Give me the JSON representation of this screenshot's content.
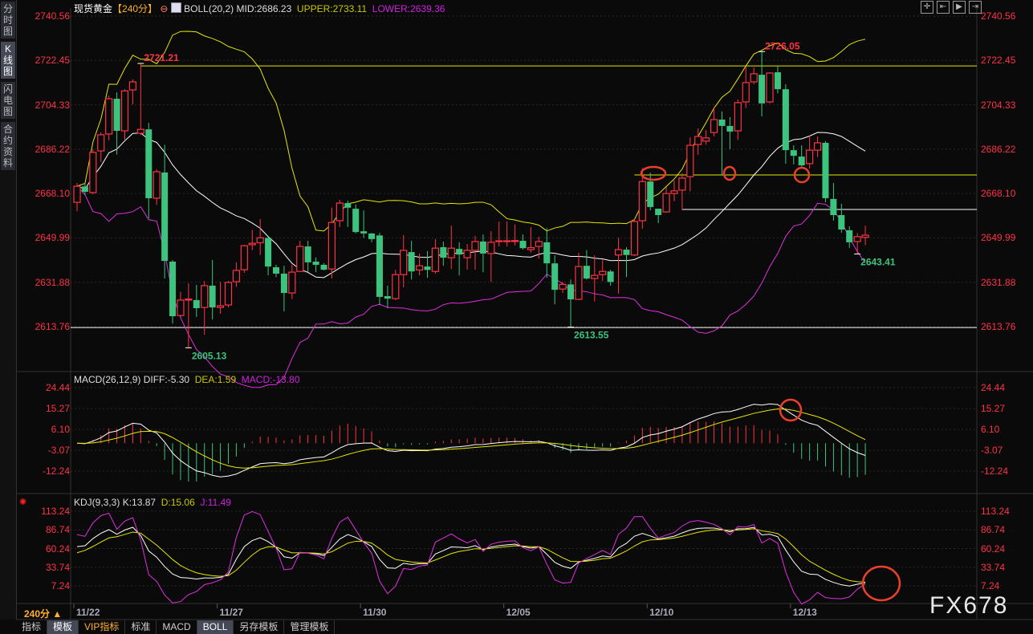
{
  "sidebar": {
    "tabs": [
      {
        "label": "分时图"
      },
      {
        "label": "K线图",
        "selected": true
      },
      {
        "label": "闪电图"
      },
      {
        "label": "合约资料"
      }
    ]
  },
  "header": {
    "title": "现货黄金",
    "period": "【240分】",
    "boll": "BOLL(20,2)",
    "mid": "MID:2686.23",
    "upper": "UPPER:2733.11",
    "lower": "LOWER:2639.36",
    "macd_name": "MACD(26,12,9)",
    "diff": "DIFF:-5.30",
    "dea": "DEA:1.59",
    "macd": "MACD:-13.80",
    "kdj_name": "KDJ(9,3,3)",
    "k": "K:13.87",
    "d": "D:15.06",
    "j": "J:11.49"
  },
  "toolbar_icons": [
    "crosshair-icon",
    "zoom-left-icon",
    "play-icon",
    "move-right-icon"
  ],
  "colors": {
    "up": "#ff3344",
    "down": "#3cc47e",
    "mid": "#ffffff",
    "upper": "#e6e600",
    "lower": "#e030e0",
    "dea": "#e6e600",
    "diff": "#ffffff",
    "j": "#e030e0",
    "axis": "#ff3344",
    "annotation": "#e8402a"
  },
  "price_axis": [
    "2740.56",
    "2722.45",
    "2704.33",
    "2686.22",
    "2668.10",
    "2649.99",
    "2631.88",
    "2613.76"
  ],
  "macd_axis": [
    "24.44",
    "15.27",
    "6.10",
    "-3.07",
    "-12.24"
  ],
  "kdj_axis": [
    "113.24",
    "86.74",
    "60.24",
    "33.74",
    "7.24"
  ],
  "x_axis": [
    {
      "label": "11/22",
      "candle": 0
    },
    {
      "label": "11/27",
      "candle": 18
    },
    {
      "label": "11/30",
      "candle": 36
    },
    {
      "label": "12/05",
      "candle": 54
    },
    {
      "label": "12/10",
      "candle": 72
    },
    {
      "label": "12/13",
      "candle": 90
    }
  ],
  "period_label": "240分 ▲",
  "bottom_tabs": [
    {
      "label": "指标"
    },
    {
      "label": "模板",
      "selected": true
    },
    {
      "label": "VIP指标",
      "vip": true
    },
    {
      "label": "标准"
    },
    {
      "label": "MACD"
    },
    {
      "label": "BOLL",
      "selected": true
    },
    {
      "label": "另存模板"
    },
    {
      "label": "管理模板"
    }
  ],
  "watermark": "FX678",
  "peak_labels": [
    {
      "text": "2721.21",
      "candle": 8,
      "price": 2721.21,
      "type": "high"
    },
    {
      "text": "2605.13",
      "candle": 14,
      "price": 2605.13,
      "type": "low"
    },
    {
      "text": "2613.55",
      "candle": 62,
      "price": 2613.55,
      "type": "low"
    },
    {
      "text": "2726.05",
      "candle": 86,
      "price": 2726.05,
      "type": "high"
    },
    {
      "text": "2643.41",
      "candle": 98,
      "price": 2643.41,
      "type": "low"
    }
  ],
  "level_lines": [
    {
      "price": 2720.2,
      "color": "#e6e600",
      "from_candle": 8
    },
    {
      "price": 2675.7,
      "color": "#e6e600",
      "from_candle": 70
    },
    {
      "price": 2661.6,
      "color": "#ffffff",
      "from_candle": 76
    },
    {
      "price": 2613.4,
      "color": "#ffffff",
      "from_candle": -1
    }
  ],
  "chart_data": {
    "type": "candlestick",
    "indicators": {
      "boll": [
        20,
        2
      ],
      "macd": [
        26,
        12,
        9
      ],
      "kdj": [
        9,
        3,
        3
      ]
    },
    "price_range": [
      2613.76,
      2740.56
    ],
    "macd_range": [
      -12.24,
      24.44
    ],
    "kdj_range": [
      7.24,
      113.24
    ],
    "ohlc": [
      [
        2664.5,
        2672.4,
        2660.9,
        2671.1
      ],
      [
        2671,
        2672.7,
        2667.5,
        2668.8
      ],
      [
        2668.5,
        2686.2,
        2667.8,
        2684.9
      ],
      [
        2685.5,
        2693.1,
        2680.9,
        2692.1
      ],
      [
        2692.4,
        2708.1,
        2689.8,
        2706.8
      ],
      [
        2706.8,
        2709.4,
        2684,
        2693.7
      ],
      [
        2693.7,
        2710.7,
        2690,
        2710
      ],
      [
        2710.4,
        2714.7,
        2704.5,
        2713.7
      ],
      [
        2692.7,
        2721.21,
        2692,
        2694.3
      ],
      [
        2694.3,
        2697,
        2658,
        2666.2
      ],
      [
        2666.2,
        2678,
        2663.5,
        2677
      ],
      [
        2676.7,
        2688,
        2633.4,
        2640.6
      ],
      [
        2640.3,
        2641,
        2615,
        2618
      ],
      [
        2618.3,
        2628,
        2617.7,
        2624.6
      ],
      [
        2624.6,
        2631.4,
        2605.13,
        2625
      ],
      [
        2624.6,
        2630.8,
        2617.7,
        2621.3
      ],
      [
        2621.6,
        2632.4,
        2610.5,
        2630.5
      ],
      [
        2630.5,
        2641,
        2616.7,
        2621.6
      ],
      [
        2621.6,
        2632,
        2619,
        2622.3
      ],
      [
        2622.6,
        2632.4,
        2621.6,
        2631.8
      ],
      [
        2632.1,
        2640,
        2630,
        2636.7
      ],
      [
        2637,
        2647.2,
        2635.7,
        2646.8
      ],
      [
        2647.2,
        2653.3,
        2645,
        2647.8
      ],
      [
        2648,
        2657.7,
        2643,
        2650
      ],
      [
        2650,
        2650,
        2634.7,
        2638.3
      ],
      [
        2638,
        2639,
        2634,
        2635.4
      ],
      [
        2635.4,
        2638.6,
        2620,
        2627.5
      ],
      [
        2627.5,
        2639,
        2625,
        2636
      ],
      [
        2636.3,
        2648.8,
        2636.3,
        2646.5
      ],
      [
        2646.5,
        2648.8,
        2636,
        2640
      ],
      [
        2640.3,
        2642,
        2636,
        2639
      ],
      [
        2639,
        2639.7,
        2636.7,
        2637
      ],
      [
        2637.3,
        2662.4,
        2633.4,
        2656.3
      ],
      [
        2657,
        2665.5,
        2654.4,
        2664.2
      ],
      [
        2664.2,
        2665.2,
        2654.4,
        2662.3
      ],
      [
        2661.9,
        2663.6,
        2651.8,
        2652.4
      ],
      [
        2652.7,
        2661.2,
        2650,
        2651.8
      ],
      [
        2651.8,
        2652,
        2648.2,
        2649.5
      ],
      [
        2651,
        2652,
        2622.6,
        2625.9
      ],
      [
        2626.2,
        2630.5,
        2621.3,
        2625.2
      ],
      [
        2625.2,
        2637,
        2624.6,
        2635
      ],
      [
        2635,
        2651.1,
        2629.8,
        2644.9
      ],
      [
        2644.2,
        2648.8,
        2633,
        2636.3
      ],
      [
        2636.9,
        2643.6,
        2634.7,
        2638.6
      ],
      [
        2638.3,
        2644.6,
        2633.7,
        2636.9
      ],
      [
        2636.3,
        2649.5,
        2635.4,
        2645.8
      ],
      [
        2646.2,
        2648.5,
        2638.6,
        2641.9
      ],
      [
        2641.9,
        2655,
        2637.3,
        2645.8
      ],
      [
        2645.5,
        2648.2,
        2634.7,
        2643.2
      ],
      [
        2641.9,
        2647.5,
        2637,
        2644.9
      ],
      [
        2644.9,
        2650.8,
        2637,
        2648.5
      ],
      [
        2648.5,
        2651.4,
        2636,
        2643.6
      ],
      [
        2643.6,
        2652.7,
        2632,
        2648.2
      ],
      [
        2648.5,
        2656.7,
        2646.5,
        2648.8
      ],
      [
        2648.5,
        2656.7,
        2646.5,
        2648.8
      ],
      [
        2648.5,
        2655.5,
        2646.9,
        2648.9
      ],
      [
        2648.8,
        2651.4,
        2645.2,
        2645.8
      ],
      [
        2645.2,
        2654.4,
        2644,
        2646
      ],
      [
        2646.5,
        2650.5,
        2641.5,
        2648.5
      ],
      [
        2648.2,
        2654,
        2633.7,
        2639.6
      ],
      [
        2639.6,
        2642.9,
        2622.9,
        2628.8
      ],
      [
        2629.1,
        2632,
        2627.5,
        2631
      ],
      [
        2631,
        2633,
        2613.55,
        2624.9
      ],
      [
        2624.9,
        2643.9,
        2624.6,
        2638.3
      ],
      [
        2638.6,
        2645,
        2633,
        2633.4
      ],
      [
        2633.4,
        2642.9,
        2624,
        2634.7
      ],
      [
        2635,
        2641,
        2632.4,
        2636.3
      ],
      [
        2636.3,
        2637,
        2630.5,
        2632
      ],
      [
        2643,
        2650,
        2627.2,
        2645.2
      ],
      [
        2645.2,
        2646.2,
        2634,
        2643
      ],
      [
        2643,
        2657.7,
        2642.6,
        2656.7
      ],
      [
        2657,
        2678.5,
        2653.7,
        2673
      ],
      [
        2673,
        2676.6,
        2661.3,
        2662.6
      ],
      [
        2661.9,
        2662,
        2656,
        2659.3
      ],
      [
        2660.6,
        2670.7,
        2660.3,
        2668.1
      ],
      [
        2668.1,
        2673.4,
        2664.9,
        2669.2
      ],
      [
        2669.5,
        2676.4,
        2661.3,
        2674.4
      ],
      [
        2675,
        2691,
        2669,
        2687.8
      ],
      [
        2688.1,
        2694.7,
        2683.9,
        2691.4
      ],
      [
        2689.5,
        2694,
        2688,
        2690.8
      ],
      [
        2693,
        2703.5,
        2691.4,
        2698.3
      ],
      [
        2698.3,
        2701.6,
        2675.4,
        2695.7
      ],
      [
        2695.7,
        2699.3,
        2686.2,
        2693.4
      ],
      [
        2693.7,
        2706.5,
        2690,
        2705.2
      ],
      [
        2705.5,
        2720,
        2703,
        2713.4
      ],
      [
        2713.7,
        2719.6,
        2712.7,
        2717
      ],
      [
        2716.6,
        2726.05,
        2699.6,
        2704.9
      ],
      [
        2705.5,
        2717.6,
        2704.9,
        2717.3
      ],
      [
        2717.6,
        2720,
        2709,
        2710.7
      ],
      [
        2710.7,
        2712.7,
        2680.3,
        2685.8
      ],
      [
        2685.8,
        2687.8,
        2680,
        2683.5
      ],
      [
        2683.2,
        2687.8,
        2679,
        2679.6
      ],
      [
        2680.3,
        2691.7,
        2678.3,
        2685.8
      ],
      [
        2685.8,
        2691.4,
        2683,
        2688.8
      ],
      [
        2688.8,
        2689.5,
        2664.5,
        2666.2
      ],
      [
        2665.9,
        2672.4,
        2657,
        2659.3
      ],
      [
        2659.3,
        2663.9,
        2652.1,
        2653.4
      ],
      [
        2653.1,
        2654.7,
        2645.9,
        2648.2
      ],
      [
        2648.5,
        2652,
        2643.41,
        2650.5
      ],
      [
        2650.2,
        2655,
        2647,
        2651.1
      ]
    ]
  }
}
